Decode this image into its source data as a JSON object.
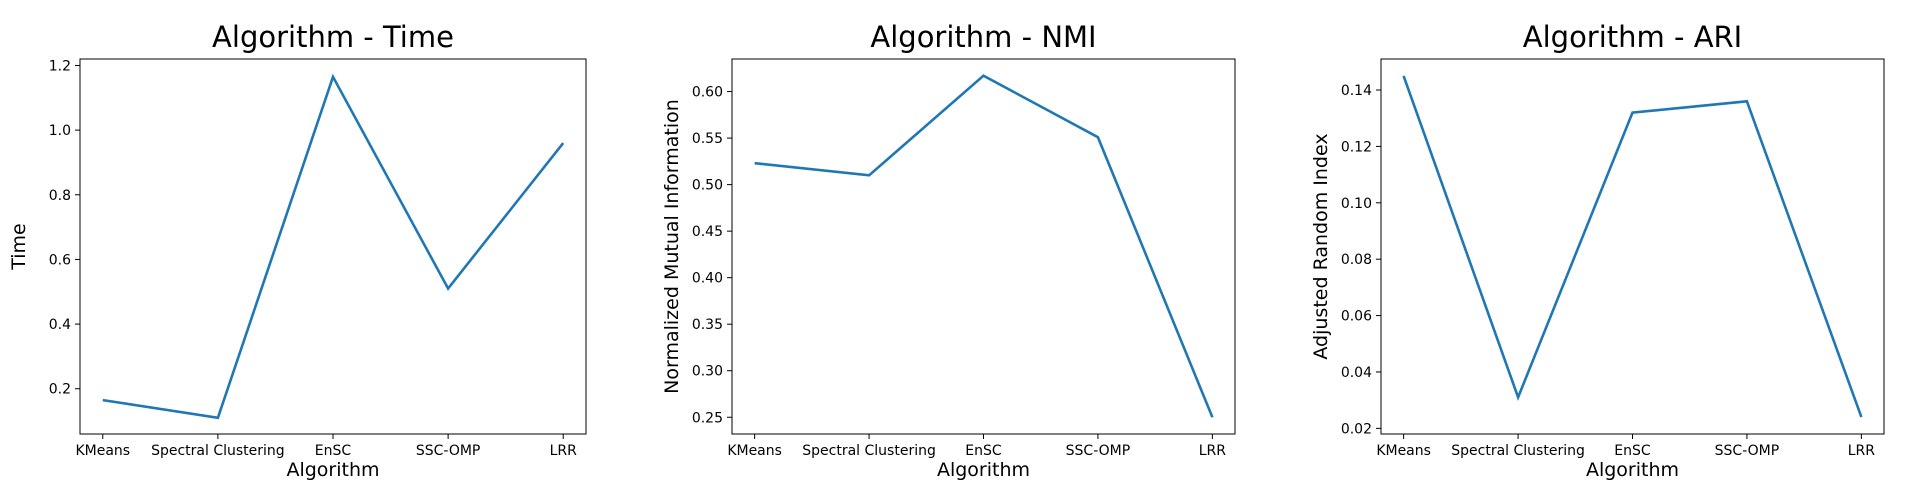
{
  "chart_data": [
    {
      "type": "line",
      "title": "Algorithm - Time",
      "xlabel": "Algorithm",
      "ylabel": "Time",
      "categories": [
        "KMeans",
        "Spectral Clustering",
        "EnSC",
        "SSC-OMP",
        "LRR"
      ],
      "series": [
        {
          "values": [
            0.165,
            0.11,
            1.165,
            0.51,
            0.96
          ]
        }
      ],
      "ylim": [
        0.06,
        1.22
      ],
      "yticks": [
        0.2,
        0.4,
        0.6,
        0.8,
        1.0,
        1.2
      ],
      "yticklabels": [
        "0.2",
        "0.4",
        "0.6",
        "0.8",
        "1.0",
        "1.2"
      ],
      "grid": false,
      "line_color": "#1f77b4"
    },
    {
      "type": "line",
      "title": "Algorithm - NMI",
      "xlabel": "Algorithm",
      "ylabel": "Normalized Mutual Information",
      "categories": [
        "KMeans",
        "Spectral Clustering",
        "EnSC",
        "SSC-OMP",
        "LRR"
      ],
      "series": [
        {
          "values": [
            0.523,
            0.51,
            0.617,
            0.551,
            0.25
          ]
        }
      ],
      "ylim": [
        0.232,
        0.635
      ],
      "yticks": [
        0.25,
        0.3,
        0.35,
        0.4,
        0.45,
        0.5,
        0.55,
        0.6
      ],
      "yticklabels": [
        "0.25",
        "0.30",
        "0.35",
        "0.40",
        "0.45",
        "0.50",
        "0.55",
        "0.60"
      ],
      "grid": false,
      "line_color": "#1f77b4"
    },
    {
      "type": "line",
      "title": "Algorithm - ARI",
      "xlabel": "Algorithm",
      "ylabel": "Adjusted Random Index",
      "categories": [
        "KMeans",
        "Spectral Clustering",
        "EnSC",
        "SSC-OMP",
        "LRR"
      ],
      "series": [
        {
          "values": [
            0.145,
            0.031,
            0.132,
            0.136,
            0.024
          ]
        }
      ],
      "ylim": [
        0.018,
        0.151
      ],
      "yticks": [
        0.02,
        0.04,
        0.06,
        0.08,
        0.1,
        0.12,
        0.14
      ],
      "yticklabels": [
        "0.02",
        "0.04",
        "0.06",
        "0.08",
        "0.10",
        "0.12",
        "0.14"
      ],
      "grid": false,
      "line_color": "#1f77b4"
    }
  ]
}
